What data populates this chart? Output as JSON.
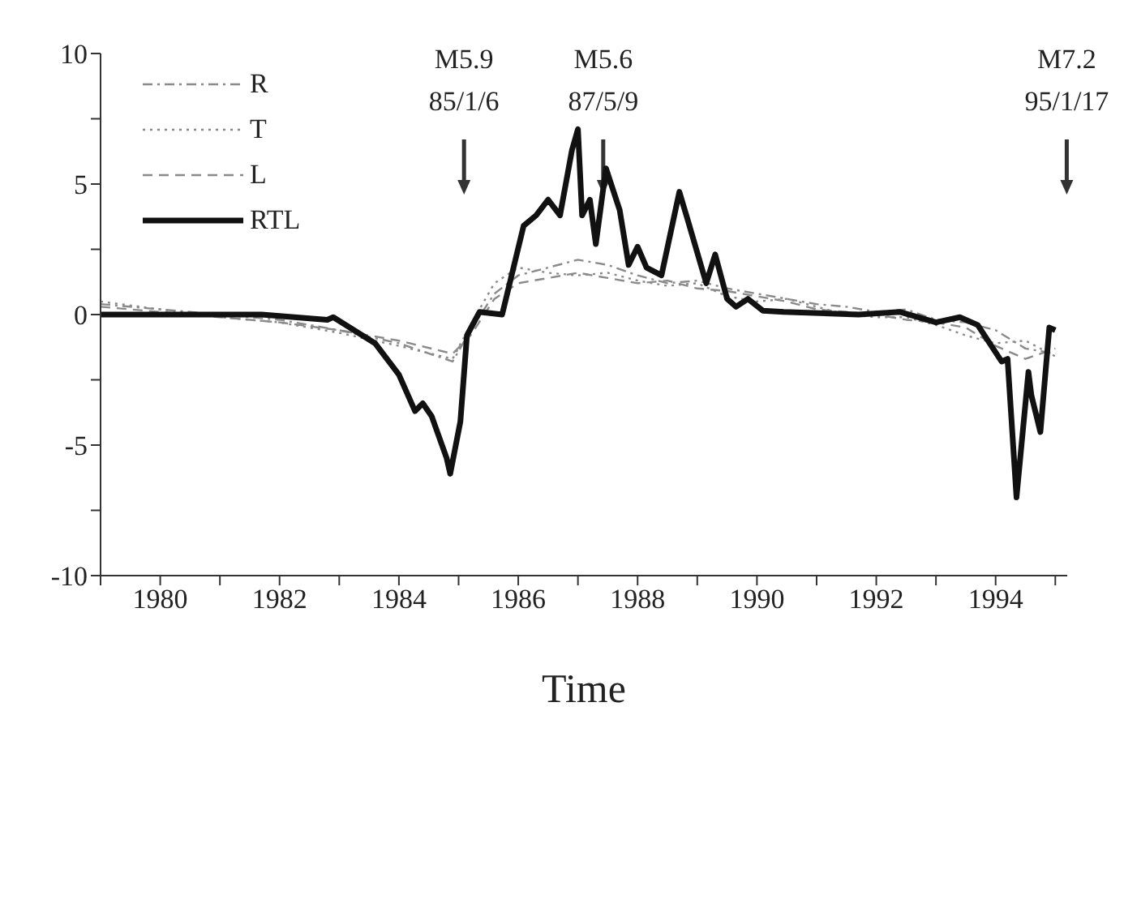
{
  "chart_data": {
    "type": "line",
    "xlabel": "Time",
    "xlim": [
      1979,
      1995.2
    ],
    "xticks": [
      {
        "value": 1979,
        "label": null
      },
      1980,
      {
        "value": 1981,
        "label": null
      },
      1982,
      {
        "value": 1983,
        "label": null
      },
      1984,
      {
        "value": 1985,
        "label": null
      },
      1986,
      {
        "value": 1987,
        "label": null
      },
      1988,
      {
        "value": 1989,
        "label": null
      },
      1990,
      {
        "value": 1991,
        "label": null
      },
      1992,
      {
        "value": 1993,
        "label": null
      },
      1994,
      {
        "value": 1995,
        "label": null
      }
    ],
    "ylim": [
      -10,
      10
    ],
    "yticks": [
      -10,
      {
        "value": -7.5,
        "label": null
      },
      -5,
      {
        "value": -2.5,
        "label": null
      },
      0,
      {
        "value": 2.5,
        "label": null
      },
      5,
      {
        "value": 7.5,
        "label": null
      },
      10
    ],
    "grid": false,
    "legend": "top left",
    "marker": "none",
    "annotations": [
      "M5.9\n85/1/6",
      "M5.6\n87/5/9",
      "M7.2\n95/1/17"
    ],
    "series": [
      {
        "name": "R",
        "color": "#8a8a8a",
        "line_style": "dashdot",
        "x": [
          1979,
          1980,
          1981,
          1982,
          1983,
          1984,
          1984.9,
          1985.2,
          1985.6,
          1986,
          1986.5,
          1987,
          1987.5,
          1988,
          1988.5,
          1989,
          1989.5,
          1990,
          1990.5,
          1991,
          1991.5,
          1992,
          1992.5,
          1993,
          1993.5,
          1994,
          1994.5,
          1995
        ],
        "values": [
          0.4,
          0.2,
          0,
          -0.2,
          -0.6,
          -1.1,
          -1.8,
          -0.6,
          0.8,
          1.5,
          1.8,
          2.1,
          1.9,
          1.5,
          1.2,
          1.3,
          1.0,
          0.8,
          0.6,
          0.4,
          0.3,
          0.1,
          0.2,
          -0.2,
          -0.3,
          -0.6,
          -1.3,
          -1.5
        ]
      },
      {
        "name": "T",
        "color": "#8a8a8a",
        "line_style": "dotted",
        "x": [
          1979,
          1980,
          1981,
          1982,
          1983,
          1984,
          1984.9,
          1985.2,
          1985.6,
          1986,
          1986.5,
          1987,
          1987.5,
          1988,
          1988.5,
          1989,
          1989.5,
          1990,
          1990.5,
          1991,
          1991.5,
          1992,
          1992.5,
          1993,
          1993.5,
          1994,
          1994.5,
          1995
        ],
        "values": [
          0.5,
          0.2,
          -0.1,
          -0.3,
          -0.7,
          -1.2,
          -1.7,
          -0.4,
          1.2,
          1.8,
          1.6,
          1.5,
          1.6,
          1.3,
          1.1,
          1.2,
          0.7,
          0.5,
          0.6,
          0.3,
          0.0,
          -0.1,
          -0.1,
          -0.4,
          -0.8,
          -1.1,
          -1.0,
          -1.6
        ]
      },
      {
        "name": "L",
        "color": "#8a8a8a",
        "line_style": "dashed",
        "x": [
          1979,
          1980,
          1981,
          1982,
          1983,
          1984,
          1984.9,
          1985.2,
          1985.6,
          1986,
          1986.5,
          1987,
          1987.5,
          1988,
          1988.5,
          1989,
          1989.5,
          1990,
          1990.5,
          1991,
          1991.5,
          1992,
          1992.5,
          1993,
          1993.5,
          1994,
          1994.5,
          1995
        ],
        "values": [
          0.3,
          0.1,
          -0.1,
          -0.3,
          -0.6,
          -1.0,
          -1.5,
          -0.8,
          0.6,
          1.2,
          1.4,
          1.6,
          1.4,
          1.2,
          1.3,
          1.0,
          0.9,
          0.7,
          0.5,
          0.2,
          0.1,
          0.0,
          -0.2,
          -0.3,
          -0.5,
          -1.2,
          -1.7,
          -1.3
        ]
      },
      {
        "name": "RTL",
        "color": "#111111",
        "line_style": "solid",
        "x": [
          1979,
          1981.7,
          1982.8,
          1982.9,
          1983.6,
          1984.0,
          1984.27,
          1984.4,
          1984.55,
          1984.8,
          1984.86,
          1985.03,
          1985.14,
          1985.35,
          1985.73,
          1986.09,
          1986.3,
          1986.5,
          1986.7,
          1986.9,
          1987.0,
          1987.07,
          1987.2,
          1987.3,
          1987.47,
          1987.7,
          1987.85,
          1988.0,
          1988.15,
          1988.4,
          1988.7,
          1988.83,
          1989.15,
          1989.3,
          1989.5,
          1989.65,
          1989.85,
          1990.1,
          1990.45,
          1991.7,
          1992.4,
          1993.0,
          1993.4,
          1993.7,
          1994.1,
          1994.2,
          1994.35,
          1994.55,
          1994.6,
          1994.75,
          1994.9,
          1995.0
        ],
        "values": [
          0,
          0,
          -0.2,
          -0.1,
          -1.1,
          -2.3,
          -3.7,
          -3.4,
          -3.9,
          -5.5,
          -6.1,
          -4.1,
          -0.8,
          0.1,
          0.0,
          3.4,
          3.8,
          4.4,
          3.8,
          6.3,
          7.1,
          3.8,
          4.4,
          2.7,
          5.6,
          4.0,
          1.9,
          2.6,
          1.8,
          1.5,
          4.7,
          3.7,
          1.2,
          2.3,
          0.6,
          0.3,
          0.6,
          0.15,
          0.1,
          0,
          0.1,
          -0.3,
          -0.1,
          -0.4,
          -1.8,
          -1.7,
          -7.0,
          -2.2,
          -3.1,
          -4.5,
          -0.5,
          -0.6
        ]
      }
    ]
  }
}
